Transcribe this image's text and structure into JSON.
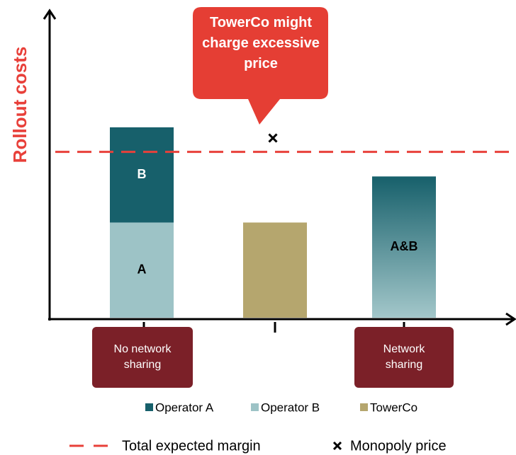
{
  "chart_data": {
    "type": "bar",
    "stacked": true,
    "ylabel": "Rollout costs",
    "annotation": "TowerCo might charge excessive price",
    "categories": [
      "No network sharing",
      null,
      "Network sharing"
    ],
    "series": [
      {
        "name": "Operator A",
        "color": "#17606b",
        "values": [
          31,
          null,
          null
        ],
        "labels": [
          "B",
          null,
          null
        ]
      },
      {
        "name": "Operator B",
        "color": "#9dc3c6",
        "values": [
          31,
          null,
          null
        ],
        "labels": [
          "A",
          null,
          null
        ]
      },
      {
        "name": "TowerCo",
        "color": "#b5a66e",
        "values": [
          null,
          31,
          null
        ],
        "labels": [
          null,
          null,
          null
        ]
      }
    ],
    "shared_bar": {
      "label": "A&B",
      "value": 46
    },
    "reference_line": {
      "name": "Total expected margin",
      "value": 54,
      "color": "#e8403a"
    },
    "marker_point": {
      "name": "Monopoly price",
      "value": 58.5
    },
    "ylim": [
      0,
      100
    ]
  }
}
